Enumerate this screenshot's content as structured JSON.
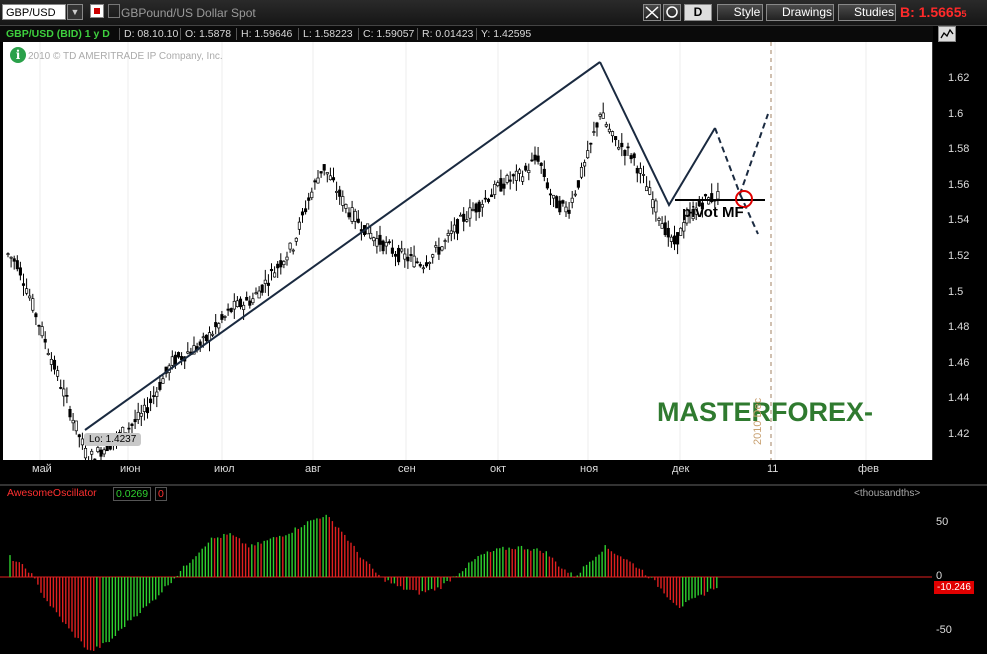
{
  "toolbar": {
    "symbol": "GBP/USD",
    "title": "GBPound/US Dollar Spot",
    "buttons": [
      {
        "icon": "crosshair-icon",
        "label": ""
      },
      {
        "icon": "link-icon",
        "label": ""
      },
      {
        "icon": "",
        "label": "D"
      },
      {
        "icon": "pencil-icon",
        "label": "Style"
      },
      {
        "icon": "pencil-icon",
        "label": "Drawings"
      },
      {
        "icon": "tools-icon",
        "label": "Studies"
      }
    ],
    "bid_label": "B: 1.5665",
    "bid_small": "5"
  },
  "infobar": {
    "symbol": "GBP/USD (BID) 1 y D",
    "date": "D: 08.10.10",
    "open": "O: 1.5878",
    "high": "H: 1.59646",
    "low": "L: 1.58223",
    "close": "C: 1.59057",
    "range": "R: 0.01423",
    "y": "Y: 1.42595",
    "legal": "2010 © TD AMERITRADE IP Company, Inc."
  },
  "price_axis": {
    "ticks": [
      "1.62",
      "1.6",
      "1.58",
      "1.56",
      "1.54",
      "1.52",
      "1.5",
      "1.48",
      "1.46",
      "1.44",
      "1.42"
    ]
  },
  "time_axis": {
    "labels": [
      "май",
      "июн",
      "июл",
      "авг",
      "сен",
      "окт",
      "ноя",
      "дек",
      "11",
      "фев"
    ],
    "year_marker": "2010 Dec"
  },
  "annotations": {
    "lo": "Lo: 1.4237",
    "pivot": "pivot MF",
    "watermark": "MASTERFOREX-"
  },
  "oscillator": {
    "name": "AwesomeOscillator",
    "value": "0.0269",
    "value2": "0",
    "units": "<thousandths>",
    "ticks": [
      "50",
      "0",
      "-50"
    ],
    "current": "-10.246",
    "colors": {
      "up": "#2fd02f",
      "down": "#e02020"
    }
  },
  "colors": {
    "background": "#000000",
    "chart_bg": "#ffffff",
    "candle": "#000000",
    "trend": "#1a2a40"
  }
}
